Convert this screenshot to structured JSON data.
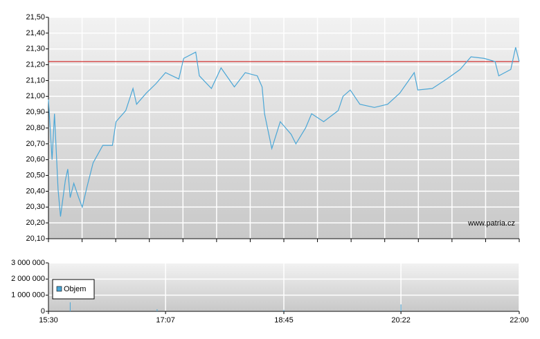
{
  "chart_data": [
    {
      "type": "line",
      "x": [
        "15:30",
        "15:33",
        "15:35",
        "15:38",
        "15:40",
        "15:44",
        "15:46",
        "15:48",
        "15:51",
        "15:55",
        "15:58",
        "16:02",
        "16:07",
        "16:15",
        "16:23",
        "16:26",
        "16:34",
        "16:40",
        "16:43",
        "16:51",
        "16:59",
        "17:07",
        "17:18",
        "17:22",
        "17:32",
        "17:35",
        "17:45",
        "17:53",
        "18:04",
        "18:13",
        "18:23",
        "18:27",
        "18:29",
        "18:35",
        "18:42",
        "18:51",
        "18:55",
        "19:03",
        "19:08",
        "19:18",
        "19:30",
        "19:34",
        "19:40",
        "19:48",
        "20:00",
        "20:11",
        "20:21",
        "20:33",
        "20:36",
        "20:48",
        "21:00",
        "21:11",
        "21:20",
        "21:31",
        "21:40",
        "21:43",
        "21:53",
        "21:57",
        "22:00"
      ],
      "series": [
        {
          "color": "#4aa6d6",
          "values": [
            20.98,
            20.6,
            20.89,
            20.41,
            20.24,
            20.47,
            20.54,
            20.36,
            20.45,
            20.36,
            20.3,
            20.43,
            20.58,
            20.69,
            20.69,
            20.84,
            20.91,
            21.05,
            20.95,
            21.02,
            21.08,
            21.15,
            21.11,
            21.24,
            21.28,
            21.13,
            21.05,
            21.18,
            21.06,
            21.15,
            21.13,
            21.06,
            20.89,
            20.67,
            20.84,
            20.76,
            20.7,
            20.8,
            20.89,
            20.84,
            20.91,
            21.0,
            21.04,
            20.95,
            20.93,
            20.95,
            21.02,
            21.15,
            21.04,
            21.05,
            21.11,
            21.17,
            21.25,
            21.24,
            21.22,
            21.13,
            21.17,
            21.31,
            21.22
          ]
        }
      ],
      "xlim": [
        "15:30",
        "22:00"
      ],
      "ylim": [
        20.1,
        21.5
      ],
      "yticks": [
        {
          "value": 20.1,
          "label": "20,10"
        },
        {
          "value": 20.2,
          "label": "20,20"
        },
        {
          "value": 20.3,
          "label": "20,30"
        },
        {
          "value": 20.4,
          "label": "20,40"
        },
        {
          "value": 20.5,
          "label": "20,50"
        },
        {
          "value": 20.6,
          "label": "20,60"
        },
        {
          "value": 20.7,
          "label": "20,70"
        },
        {
          "value": 20.8,
          "label": "20,80"
        },
        {
          "value": 20.9,
          "label": "20,90"
        },
        {
          "value": 21.0,
          "label": "21,00"
        },
        {
          "value": 21.1,
          "label": "21,10"
        },
        {
          "value": 21.2,
          "label": "21,20"
        },
        {
          "value": 21.3,
          "label": "21,30"
        },
        {
          "value": 21.4,
          "label": "21,40"
        },
        {
          "value": 21.5,
          "label": "21,50"
        }
      ],
      "reference_line": {
        "value": 21.22,
        "color": "#cc0000"
      },
      "annotation": "www.patria.cz",
      "grid": true
    },
    {
      "type": "bar",
      "x": [
        "15:48",
        "17:00",
        "18:45",
        "20:22"
      ],
      "series": [
        {
          "name": "Objem",
          "color": "#4aa6d6",
          "values": [
            560000,
            130000,
            90000,
            430000
          ]
        }
      ],
      "xlim": [
        "15:30",
        "22:00"
      ],
      "xticks": [
        "15:30",
        "17:07",
        "18:45",
        "20:22",
        "22:00"
      ],
      "ylim": [
        0,
        3000000
      ],
      "yticks": [
        0,
        {
          "value": 1000000,
          "label": "1 000 000"
        },
        {
          "value": 2000000,
          "label": "2 000 000"
        },
        {
          "value": 3000000,
          "label": "3 000 000"
        }
      ],
      "legend": "upper-left",
      "grid": true
    }
  ]
}
